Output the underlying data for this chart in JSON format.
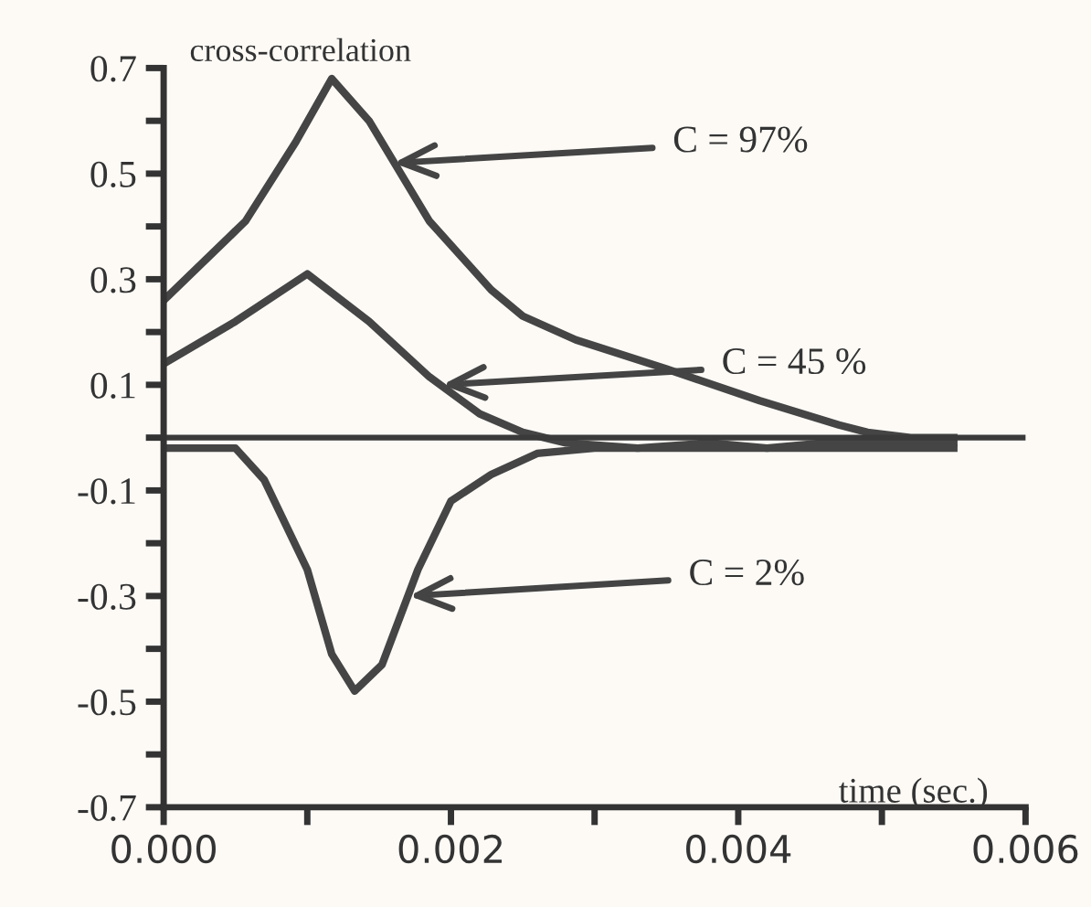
{
  "chart_data": {
    "type": "line",
    "title": "cross-correlation",
    "xlabel": "time (sec.)",
    "xlim": [
      0,
      0.006
    ],
    "ylim": [
      -0.7,
      0.7
    ],
    "xticks": [
      {
        "value": 0,
        "label": "0.000"
      },
      {
        "value": 0.001,
        "label": null
      },
      {
        "value": 0.002,
        "label": "0.002"
      },
      {
        "value": 0.003,
        "label": null
      },
      {
        "value": 0.004,
        "label": "0.004"
      },
      {
        "value": 0.005,
        "label": null
      },
      {
        "value": 0.006,
        "label": "0.006"
      }
    ],
    "yticks": [
      {
        "value": -0.7,
        "label": "-0.7"
      },
      {
        "value": -0.6,
        "label": null
      },
      {
        "value": -0.5,
        "label": "-0.5"
      },
      {
        "value": -0.4,
        "label": null
      },
      {
        "value": -0.3,
        "label": "-0.3"
      },
      {
        "value": -0.2,
        "label": null
      },
      {
        "value": -0.1,
        "label": "-0.1"
      },
      {
        "value": 0,
        "label": null
      },
      {
        "value": 0.1,
        "label": "0.1"
      },
      {
        "value": 0.2,
        "label": null
      },
      {
        "value": 0.3,
        "label": "0.3"
      },
      {
        "value": 0.4,
        "label": null
      },
      {
        "value": 0.5,
        "label": "0.5"
      },
      {
        "value": 0.6,
        "label": null
      },
      {
        "value": 0.7,
        "label": "0.7"
      }
    ],
    "grid": false,
    "marker": "none",
    "line_style": "solid",
    "ref_lines": [
      {
        "axis": "y",
        "value": 0,
        "color": "#3a3a3a"
      }
    ],
    "series": [
      {
        "color": "#454545",
        "x": [
          0,
          0.00057,
          0.00092,
          0.00117,
          0.00143,
          0.00185,
          0.00228,
          0.0025,
          0.00287,
          0.0035,
          0.00415,
          0.0047,
          0.0049,
          0.0052,
          0.0055
        ],
        "values": [
          0.26,
          0.41,
          0.56,
          0.68,
          0.6,
          0.41,
          0.28,
          0.23,
          0.185,
          0.13,
          0.07,
          0.024,
          0.01,
          0,
          0
        ]
      },
      {
        "color": "#454545",
        "x": [
          0,
          0.0005,
          0.001,
          0.00143,
          0.00185,
          0.0022,
          0.0025,
          0.0028,
          0.0033,
          0.0038,
          0.0042,
          0.0046,
          0.005,
          0.0055
        ],
        "values": [
          0.14,
          0.22,
          0.31,
          0.22,
          0.115,
          0.045,
          0.01,
          -0.01,
          -0.02,
          -0.01,
          -0.02,
          -0.01,
          -0.01,
          -0.01
        ]
      },
      {
        "color": "#454545",
        "x": [
          0,
          0.0005,
          0.0007,
          0.001,
          0.00117,
          0.00133,
          0.00152,
          0.00177,
          0.002,
          0.00228,
          0.0026,
          0.003,
          0.0035,
          0.004,
          0.0045,
          0.005,
          0.0055
        ],
        "values": [
          -0.02,
          -0.02,
          -0.08,
          -0.25,
          -0.41,
          -0.48,
          -0.43,
          -0.25,
          -0.12,
          -0.07,
          -0.03,
          -0.02,
          -0.02,
          -0.02,
          -0.02,
          -0.02,
          -0.02
        ]
      }
    ],
    "annotations": [
      {
        "text": "C = 97%",
        "x": 0.0016,
        "y": 0.52
      },
      {
        "text": "C = 45 %",
        "x": 0.00194,
        "y": 0.1
      },
      {
        "text": "C = 2%",
        "x": 0.00171,
        "y": -0.3
      }
    ]
  }
}
